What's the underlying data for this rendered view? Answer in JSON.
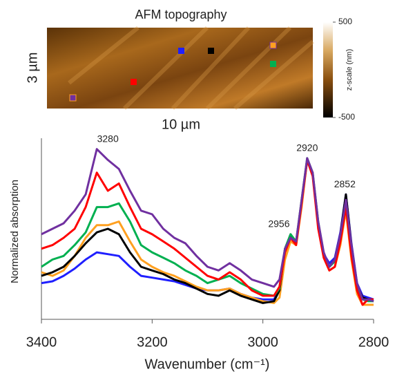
{
  "chart_data": {
    "type": "line",
    "xlabel": "Wavenumber (cm⁻¹)",
    "ylabel": "Normalized absorption",
    "x": [
      3400,
      3380,
      3360,
      3340,
      3320,
      3300,
      3280,
      3260,
      3240,
      3220,
      3200,
      3180,
      3160,
      3140,
      3120,
      3100,
      3080,
      3060,
      3040,
      3020,
      3000,
      2980,
      2970,
      2960,
      2950,
      2940,
      2930,
      2920,
      2910,
      2900,
      2890,
      2880,
      2870,
      2860,
      2850,
      2840,
      2830,
      2820,
      2810,
      2800
    ],
    "xlim": [
      3400,
      2800
    ],
    "xticks": [
      3400,
      3200,
      3000,
      2800
    ],
    "ylim": [
      0,
      1
    ],
    "annotations": [
      3280,
      2956,
      2920,
      2852
    ],
    "series": [
      {
        "color": "#1f1fff",
        "values": [
          0.2,
          0.21,
          0.24,
          0.28,
          0.33,
          0.37,
          0.36,
          0.35,
          0.29,
          0.24,
          0.23,
          0.22,
          0.21,
          0.19,
          0.17,
          0.16,
          0.16,
          0.17,
          0.14,
          0.12,
          0.11,
          0.11,
          0.16,
          0.38,
          0.46,
          0.42,
          0.65,
          0.88,
          0.8,
          0.53,
          0.36,
          0.31,
          0.34,
          0.48,
          0.69,
          0.42,
          0.2,
          0.13,
          0.12,
          0.11
        ]
      },
      {
        "color": "#ffa020",
        "values": [
          0.26,
          0.24,
          0.27,
          0.35,
          0.45,
          0.52,
          0.52,
          0.54,
          0.43,
          0.33,
          0.29,
          0.26,
          0.24,
          0.21,
          0.18,
          0.16,
          0.16,
          0.17,
          0.14,
          0.12,
          0.1,
          0.09,
          0.12,
          0.33,
          0.43,
          0.41,
          0.62,
          0.88,
          0.8,
          0.52,
          0.34,
          0.27,
          0.29,
          0.41,
          0.6,
          0.33,
          0.14,
          0.08,
          0.08,
          0.08
        ]
      },
      {
        "color": "#000000",
        "values": [
          0.24,
          0.26,
          0.29,
          0.35,
          0.42,
          0.48,
          0.5,
          0.47,
          0.37,
          0.29,
          0.27,
          0.25,
          0.22,
          0.2,
          0.17,
          0.14,
          0.13,
          0.16,
          0.13,
          0.11,
          0.09,
          0.1,
          0.16,
          0.39,
          0.47,
          0.42,
          0.65,
          0.88,
          0.8,
          0.53,
          0.35,
          0.29,
          0.33,
          0.47,
          0.69,
          0.41,
          0.19,
          0.12,
          0.11,
          0.1
        ]
      },
      {
        "color": "#00b050",
        "values": [
          0.29,
          0.33,
          0.35,
          0.41,
          0.48,
          0.62,
          0.62,
          0.64,
          0.54,
          0.41,
          0.37,
          0.34,
          0.31,
          0.27,
          0.24,
          0.2,
          0.22,
          0.24,
          0.2,
          0.17,
          0.14,
          0.13,
          0.17,
          0.39,
          0.47,
          0.43,
          0.66,
          0.89,
          0.81,
          0.54,
          0.36,
          0.29,
          0.32,
          0.45,
          0.64,
          0.39,
          0.18,
          0.11,
          0.1,
          0.1
        ]
      },
      {
        "color": "#ff0000",
        "values": [
          0.39,
          0.41,
          0.45,
          0.5,
          0.62,
          0.81,
          0.71,
          0.75,
          0.62,
          0.5,
          0.47,
          0.43,
          0.39,
          0.34,
          0.29,
          0.24,
          0.22,
          0.26,
          0.22,
          0.16,
          0.13,
          0.13,
          0.18,
          0.37,
          0.45,
          0.41,
          0.64,
          0.88,
          0.79,
          0.5,
          0.34,
          0.27,
          0.29,
          0.43,
          0.62,
          0.35,
          0.16,
          0.08,
          0.11,
          0.11
        ]
      },
      {
        "color": "#7030a0",
        "values": [
          0.47,
          0.5,
          0.53,
          0.6,
          0.69,
          0.94,
          0.88,
          0.83,
          0.71,
          0.6,
          0.58,
          0.5,
          0.45,
          0.42,
          0.35,
          0.29,
          0.27,
          0.31,
          0.27,
          0.22,
          0.2,
          0.18,
          0.22,
          0.39,
          0.45,
          0.43,
          0.66,
          0.89,
          0.81,
          0.54,
          0.37,
          0.29,
          0.33,
          0.47,
          0.66,
          0.41,
          0.2,
          0.11,
          0.11,
          0.1
        ]
      }
    ]
  },
  "afm": {
    "title": "AFM topography",
    "x_label": "10 µm",
    "y_label": "3 µm",
    "colorbar": {
      "label": "z-scale (nm)",
      "lim": [
        -500,
        500
      ],
      "ticks": [
        500,
        -500
      ]
    }
  }
}
